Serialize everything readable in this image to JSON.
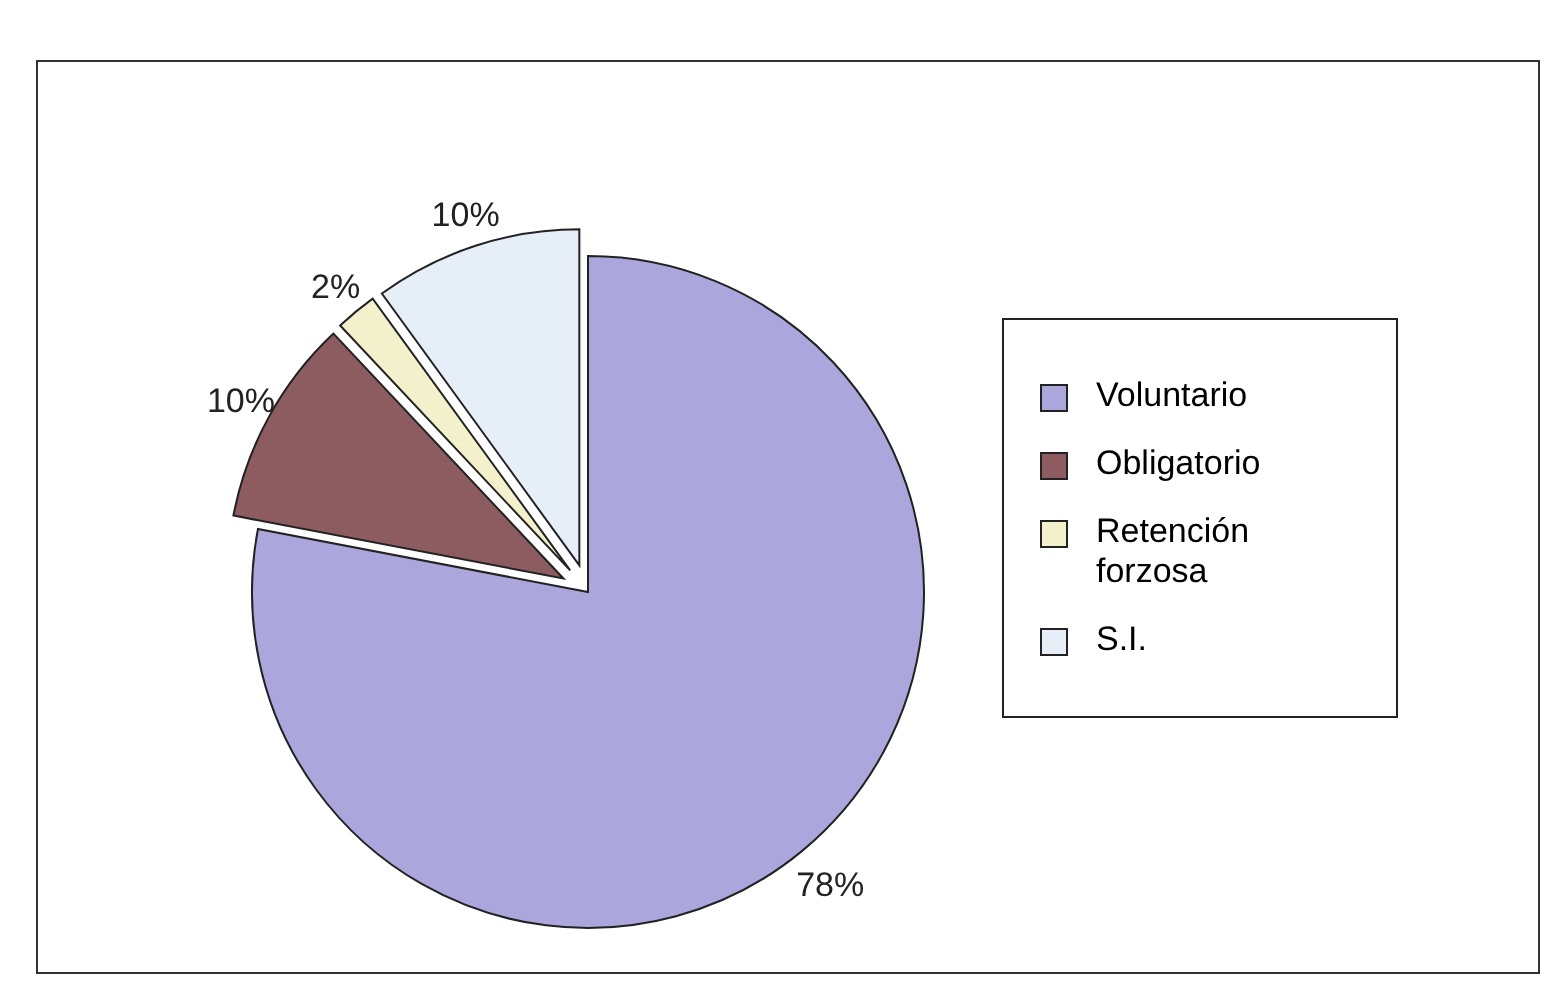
{
  "chart_data": {
    "type": "pie",
    "categories": [
      "Voluntario",
      "Obligatorio",
      "Retención forzosa",
      "S.I."
    ],
    "values": [
      78,
      10,
      2,
      10
    ],
    "colors": [
      "#aba7dd",
      "#8c5c60",
      "#f3f1cc",
      "#e6eef7"
    ],
    "value_labels": [
      "78%",
      "10%",
      "2%",
      "10%"
    ],
    "legend": "right"
  }
}
